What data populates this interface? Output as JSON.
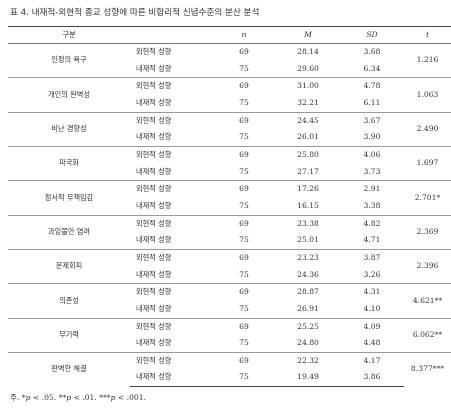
{
  "caption": "표 4. 내재적-외현적 종교 성향에 따른 비합리적 신념수준의 분산 분석",
  "headers": {
    "variable": "구분",
    "group": "",
    "n": "n",
    "m": "M",
    "sd": "SD",
    "t": "t"
  },
  "rows": [
    {
      "variable": "인정의 욕구",
      "t": "1.216",
      "groups": [
        {
          "group": "외현적 성향",
          "n": "69",
          "m": "28.14",
          "sd": "3.68"
        },
        {
          "group": "내재적 성향",
          "n": "75",
          "m": "29.60",
          "sd": "6.34"
        }
      ]
    },
    {
      "variable": "개인의 완벽성",
      "t": "1.063",
      "groups": [
        {
          "group": "외현적 성향",
          "n": "69",
          "m": "31.00",
          "sd": "4.78"
        },
        {
          "group": "내재적 성향",
          "n": "75",
          "m": "32.21",
          "sd": "6.11"
        }
      ]
    },
    {
      "variable": "비난 경향성",
      "t": "2.490",
      "groups": [
        {
          "group": "외현적 성향",
          "n": "69",
          "m": "24.45",
          "sd": "3.67"
        },
        {
          "group": "내재적 성향",
          "n": "75",
          "m": "26.01",
          "sd": "3.90"
        }
      ]
    },
    {
      "variable": "파국화",
      "t": "1.697",
      "groups": [
        {
          "group": "외현적 성향",
          "n": "69",
          "m": "25.80",
          "sd": "4.06"
        },
        {
          "group": "내재적 성향",
          "n": "75",
          "m": "27.17",
          "sd": "3.73"
        }
      ]
    },
    {
      "variable": "정서적 무책임감",
      "t": "2.701*",
      "groups": [
        {
          "group": "외현적 성향",
          "n": "69",
          "m": "17.26",
          "sd": "2.91"
        },
        {
          "group": "내재적 성향",
          "n": "75",
          "m": "16.15",
          "sd": "3.38"
        }
      ]
    },
    {
      "variable": "과잉불안 염려",
      "t": "2.369",
      "groups": [
        {
          "group": "외현적 성향",
          "n": "69",
          "m": "23.38",
          "sd": "4.82"
        },
        {
          "group": "내재적 성향",
          "n": "75",
          "m": "25.01",
          "sd": "4.71"
        }
      ]
    },
    {
      "variable": "문제회피",
      "t": "2.396",
      "groups": [
        {
          "group": "외현적 성향",
          "n": "69",
          "m": "23.23",
          "sd": "3.87"
        },
        {
          "group": "내재적 성향",
          "n": "75",
          "m": "24.36",
          "sd": "3.26"
        }
      ]
    },
    {
      "variable": "의존성",
      "t": "4.621**",
      "groups": [
        {
          "group": "외현적 성향",
          "n": "69",
          "m": "28.87",
          "sd": "4.31"
        },
        {
          "group": "내재적 성향",
          "n": "75",
          "m": "26.91",
          "sd": "4.10"
        }
      ]
    },
    {
      "variable": "무기력",
      "t": "6.062**",
      "groups": [
        {
          "group": "외현적 성향",
          "n": "69",
          "m": "25.25",
          "sd": "4.09"
        },
        {
          "group": "내재적 성향",
          "n": "75",
          "m": "24.80",
          "sd": "4.48"
        }
      ]
    },
    {
      "variable": "완벽한 해결",
      "t": "8.377***",
      "groups": [
        {
          "group": "외현적 성향",
          "n": "69",
          "m": "22.32",
          "sd": "4.17"
        },
        {
          "group": "내재적 성향",
          "n": "75",
          "m": "19.49",
          "sd": "3.86"
        }
      ]
    }
  ],
  "note": {
    "prefix": "주. *",
    "p1": "p",
    "t1": " < .05. **",
    "p2": "p",
    "t2": " < .01. ***",
    "p3": "p",
    "t3": " < .001."
  }
}
